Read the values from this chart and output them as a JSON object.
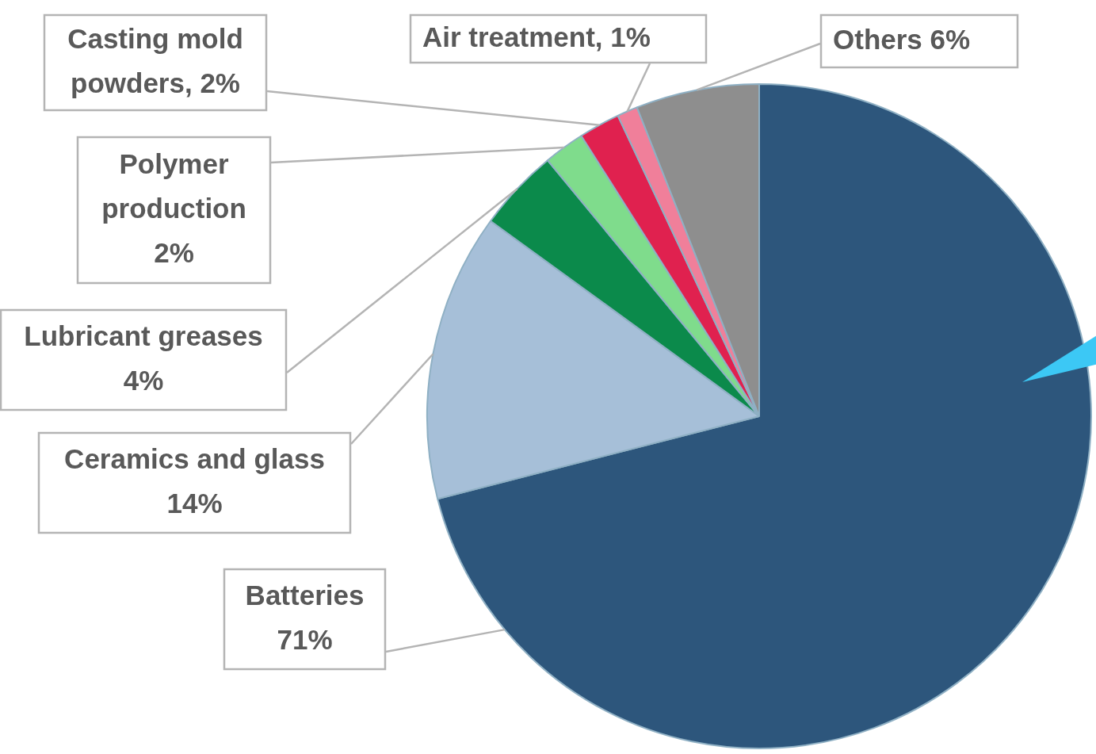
{
  "chart_data": {
    "type": "pie",
    "categories": [
      "Batteries 71%",
      "Ceramics and glass 14%",
      "Lubricant greases 4%",
      "Polymer production 2%",
      "Casting mold powders, 2%",
      "Air treatment, 1%",
      "Others 6%"
    ],
    "values": [
      71,
      14,
      4,
      2,
      2,
      1,
      6
    ],
    "colors": [
      "#2d567c",
      "#a6bfd8",
      "#0b8a4b",
      "#7fdc8c",
      "#e0214f",
      "#f07f9a",
      "#8e8e8e"
    ],
    "legend": false
  }
}
